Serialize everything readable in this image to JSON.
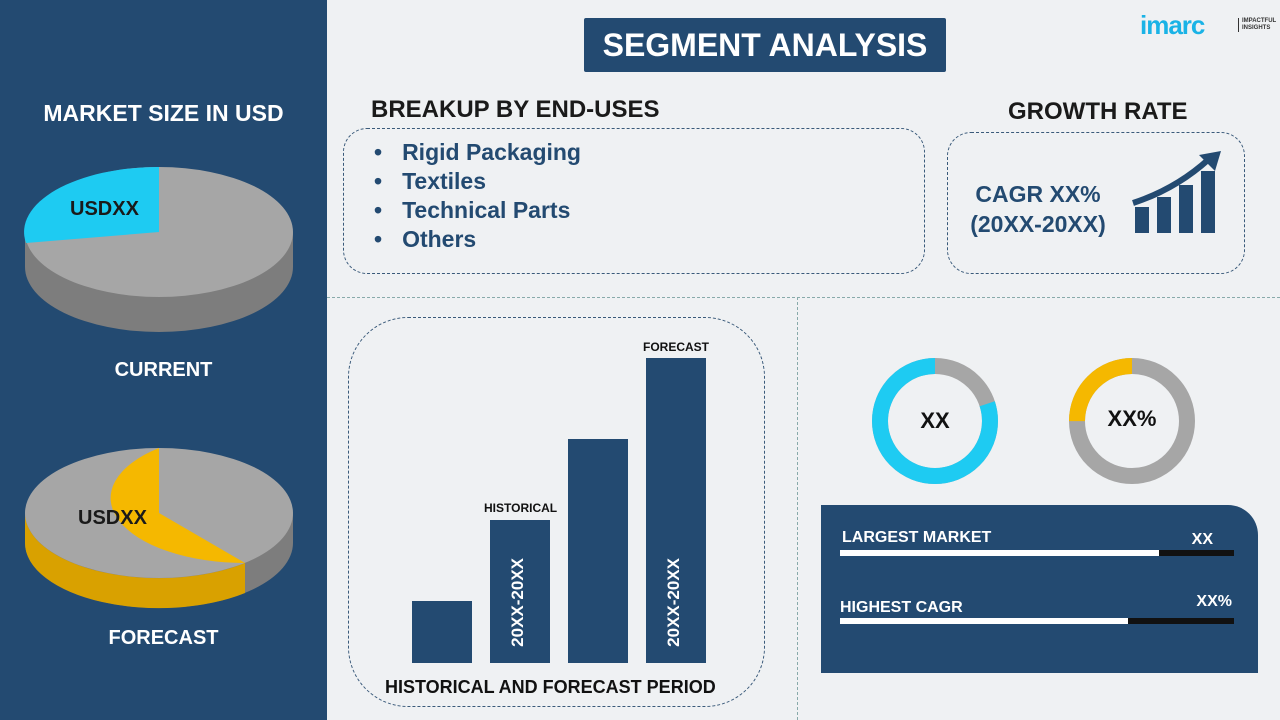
{
  "brand": {
    "name": "imarc",
    "tagline": "IMPACTFUL INSIGHTS"
  },
  "title": "SEGMENT ANALYSIS",
  "left": {
    "heading": "MARKET SIZE IN USD",
    "current": {
      "value": "USDXX",
      "label": "CURRENT"
    },
    "forecast": {
      "value": "USDXX",
      "label": "FORECAST"
    }
  },
  "breakup": {
    "heading": "BREAKUP BY END-USES",
    "items": [
      "Rigid Packaging",
      "Textiles",
      "Technical Parts",
      "Others"
    ]
  },
  "growth": {
    "heading": "GROWTH RATE",
    "cagr": "CAGR XX%",
    "period": "(20XX-20XX)"
  },
  "period_chart": {
    "historical_label": "HISTORICAL",
    "forecast_label": "FORECAST",
    "historical_range": "20XX-20XX",
    "forecast_range": "20XX-20XX",
    "footer": "HISTORICAL AND FORECAST PERIOD"
  },
  "donuts": [
    {
      "label": "XX",
      "color": "#1ecbf2",
      "fill": 0.8
    },
    {
      "label": "XX%",
      "color": "#f5b800",
      "fill": 0.25
    }
  ],
  "stats": [
    {
      "label": "LARGEST MARKET",
      "value": "XX",
      "fill": 0.81
    },
    {
      "label": "HIGHEST CAGR",
      "value": "XX%",
      "fill": 0.73
    }
  ],
  "colors": {
    "navy": "#234a71",
    "cyan": "#1ecbf2",
    "yellow": "#f5b800",
    "gray": "#a6a6a6"
  }
}
